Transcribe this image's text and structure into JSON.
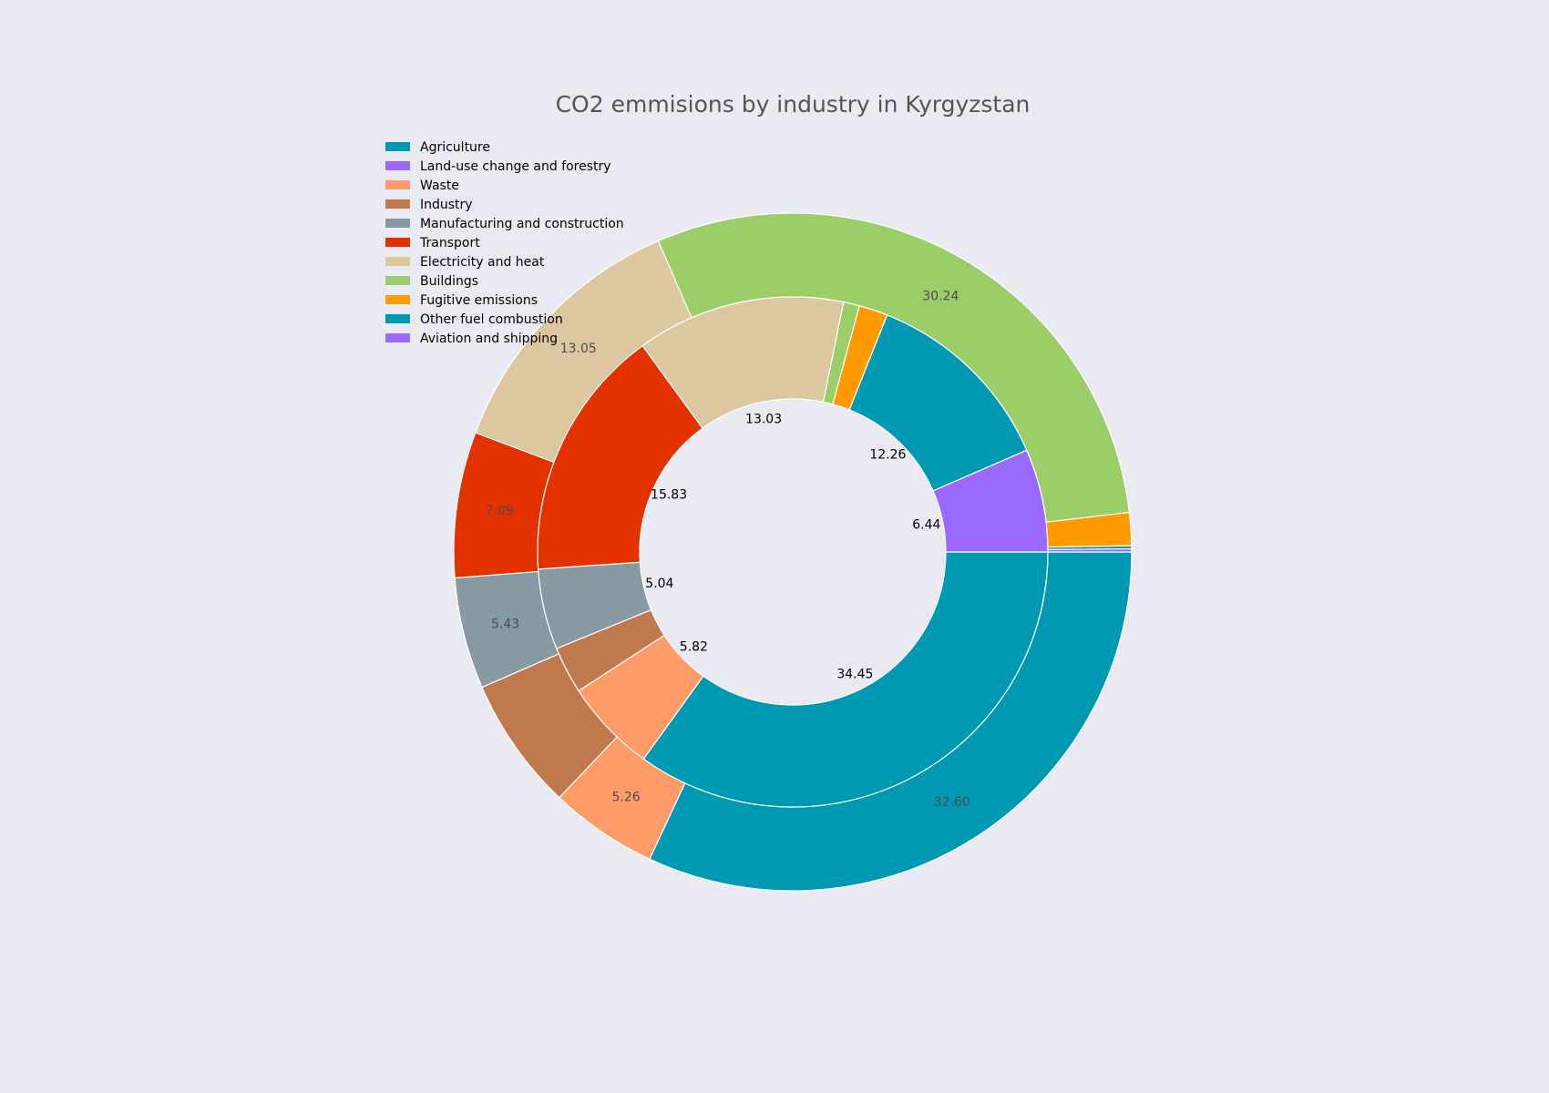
{
  "chart_data": {
    "type": "pie",
    "title": "CO2 emmisions by industry in Kyrgyzstan",
    "legend_position": "top-left",
    "categories": [
      "Agriculture",
      "Land-use change and forestry",
      "Waste",
      "Industry",
      "Manufacturing and construction",
      "Transport",
      "Electricity and heat",
      "Buildings",
      "Fugitive emissions",
      "Other fuel combustion",
      "Aviation and shipping"
    ],
    "colors": [
      "#0099B3",
      "#9B69FF",
      "#FF9B69",
      "#BF794D",
      "#8799A3",
      "#E33200",
      "#DCC7A1",
      "#9BCD69",
      "#FF9B00",
      "#0099B3",
      "#9B69FF"
    ],
    "rings": [
      {
        "ring": "inner",
        "values": [
          34.45,
          0.0,
          5.82,
          2.94,
          5.04,
          15.83,
          13.03,
          1.0,
          1.8,
          12.26,
          6.44
        ],
        "labels": [
          "34.45",
          "",
          "5.82",
          "",
          "5.04",
          "15.83",
          "13.03",
          "",
          "",
          "12.26",
          "6.44"
        ]
      },
      {
        "ring": "outer",
        "values": [
          32.6,
          0.0,
          5.26,
          6.5,
          5.43,
          7.09,
          13.05,
          30.24,
          1.6,
          0.15,
          0.15
        ],
        "labels": [
          "32.60",
          "",
          "5.26",
          "",
          "5.43",
          "7.09",
          "13.05",
          "30.24",
          "",
          "",
          ""
        ]
      }
    ]
  }
}
